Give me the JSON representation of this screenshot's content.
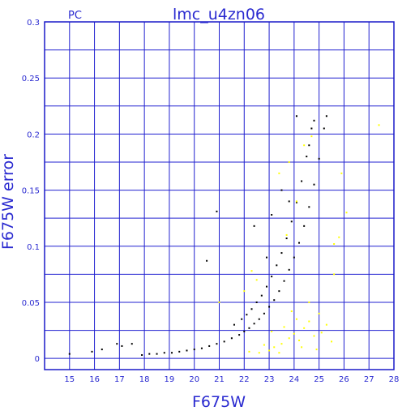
{
  "chart_data": {
    "type": "scatter",
    "title": "lmc_u4zn06",
    "subtitle": "PC",
    "xlabel": "F675W",
    "ylabel": "F675W error",
    "xlim": [
      14,
      28
    ],
    "ylim": [
      -0.01,
      0.3
    ],
    "grid": true,
    "x_ticks": [
      "15",
      "16",
      "17",
      "18",
      "19",
      "20",
      "21",
      "22",
      "23",
      "24",
      "25",
      "26",
      "27",
      "28"
    ],
    "y_ticks": [
      "0",
      "0.05",
      "0.1",
      "0.15",
      "0.2",
      "0.25",
      "0.3"
    ],
    "colors": {
      "frame": "#1a1ac8",
      "grid": "#2020d0",
      "text": "#2a2ad0",
      "main_points": "#000000",
      "flagged_points": "#ffff00"
    },
    "series": [
      {
        "color": "#000000",
        "note_points": "black points follow two exponential error sequences",
        "points": [
          [
            15.0,
            0.004
          ],
          [
            15.9,
            0.006
          ],
          [
            16.3,
            0.008
          ],
          [
            16.9,
            0.013
          ],
          [
            17.1,
            0.011
          ],
          [
            17.5,
            0.013
          ],
          [
            17.9,
            0.003
          ],
          [
            18.2,
            0.004
          ],
          [
            18.5,
            0.004
          ],
          [
            18.8,
            0.005
          ],
          [
            19.1,
            0.005
          ],
          [
            19.4,
            0.006
          ],
          [
            19.7,
            0.007
          ],
          [
            20.0,
            0.008
          ],
          [
            20.3,
            0.009
          ],
          [
            20.6,
            0.011
          ],
          [
            20.9,
            0.013
          ],
          [
            21.2,
            0.015
          ],
          [
            21.5,
            0.018
          ],
          [
            21.8,
            0.021
          ],
          [
            22.0,
            0.024
          ],
          [
            22.2,
            0.027
          ],
          [
            22.4,
            0.031
          ],
          [
            22.6,
            0.035
          ],
          [
            22.8,
            0.04
          ],
          [
            23.0,
            0.046
          ],
          [
            23.2,
            0.052
          ],
          [
            23.4,
            0.06
          ],
          [
            23.6,
            0.069
          ],
          [
            23.8,
            0.079
          ],
          [
            24.0,
            0.09
          ],
          [
            24.2,
            0.103
          ],
          [
            24.4,
            0.118
          ],
          [
            24.6,
            0.135
          ],
          [
            24.8,
            0.155
          ],
          [
            25.0,
            0.178
          ],
          [
            25.2,
            0.205
          ],
          [
            21.6,
            0.03
          ],
          [
            21.9,
            0.035
          ],
          [
            22.1,
            0.039
          ],
          [
            22.3,
            0.044
          ],
          [
            22.5,
            0.05
          ],
          [
            22.7,
            0.056
          ],
          [
            22.9,
            0.064
          ],
          [
            23.1,
            0.073
          ],
          [
            23.3,
            0.083
          ],
          [
            23.5,
            0.094
          ],
          [
            23.7,
            0.107
          ],
          [
            23.9,
            0.122
          ],
          [
            24.1,
            0.139
          ],
          [
            24.3,
            0.158
          ],
          [
            24.5,
            0.18
          ],
          [
            24.7,
            0.205
          ],
          [
            20.9,
            0.131
          ],
          [
            20.5,
            0.087
          ],
          [
            22.4,
            0.118
          ],
          [
            23.1,
            0.128
          ],
          [
            24.1,
            0.216
          ],
          [
            24.8,
            0.212
          ],
          [
            25.3,
            0.216
          ],
          [
            23.5,
            0.15
          ],
          [
            22.9,
            0.09
          ],
          [
            23.8,
            0.14
          ],
          [
            24.6,
            0.19
          ]
        ]
      },
      {
        "color": "#ffff00",
        "note_points": "yellow points are scattered around 23 to 25 mag with low error",
        "points": [
          [
            22.2,
            0.006
          ],
          [
            22.6,
            0.005
          ],
          [
            23.0,
            0.007
          ],
          [
            23.2,
            0.01
          ],
          [
            23.5,
            0.013
          ],
          [
            23.8,
            0.018
          ],
          [
            24.0,
            0.022
          ],
          [
            24.2,
            0.016
          ],
          [
            24.4,
            0.027
          ],
          [
            24.6,
            0.033
          ],
          [
            24.8,
            0.02
          ],
          [
            25.0,
            0.04
          ],
          [
            25.3,
            0.03
          ],
          [
            24.3,
            0.01
          ],
          [
            24.9,
            0.008
          ],
          [
            23.4,
            0.005
          ],
          [
            24.1,
            0.035
          ],
          [
            23.6,
            0.028
          ],
          [
            25.5,
            0.015
          ],
          [
            22.8,
            0.012
          ],
          [
            24.6,
            0.05
          ],
          [
            23.1,
            0.024
          ],
          [
            23.9,
            0.042
          ],
          [
            25.1,
            0.023
          ],
          [
            22.0,
            0.06
          ],
          [
            22.3,
            0.078
          ],
          [
            23.7,
            0.11
          ],
          [
            24.1,
            0.14
          ],
          [
            24.7,
            0.198
          ],
          [
            24.4,
            0.19
          ],
          [
            23.8,
            0.175
          ],
          [
            23.4,
            0.165
          ],
          [
            25.6,
            0.075
          ],
          [
            25.9,
            0.165
          ],
          [
            26.1,
            0.13
          ],
          [
            27.4,
            0.208
          ],
          [
            25.8,
            0.108
          ],
          [
            25.6,
            0.102
          ],
          [
            21.0,
            0.05
          ],
          [
            22.5,
            0.07
          ]
        ]
      }
    ]
  }
}
